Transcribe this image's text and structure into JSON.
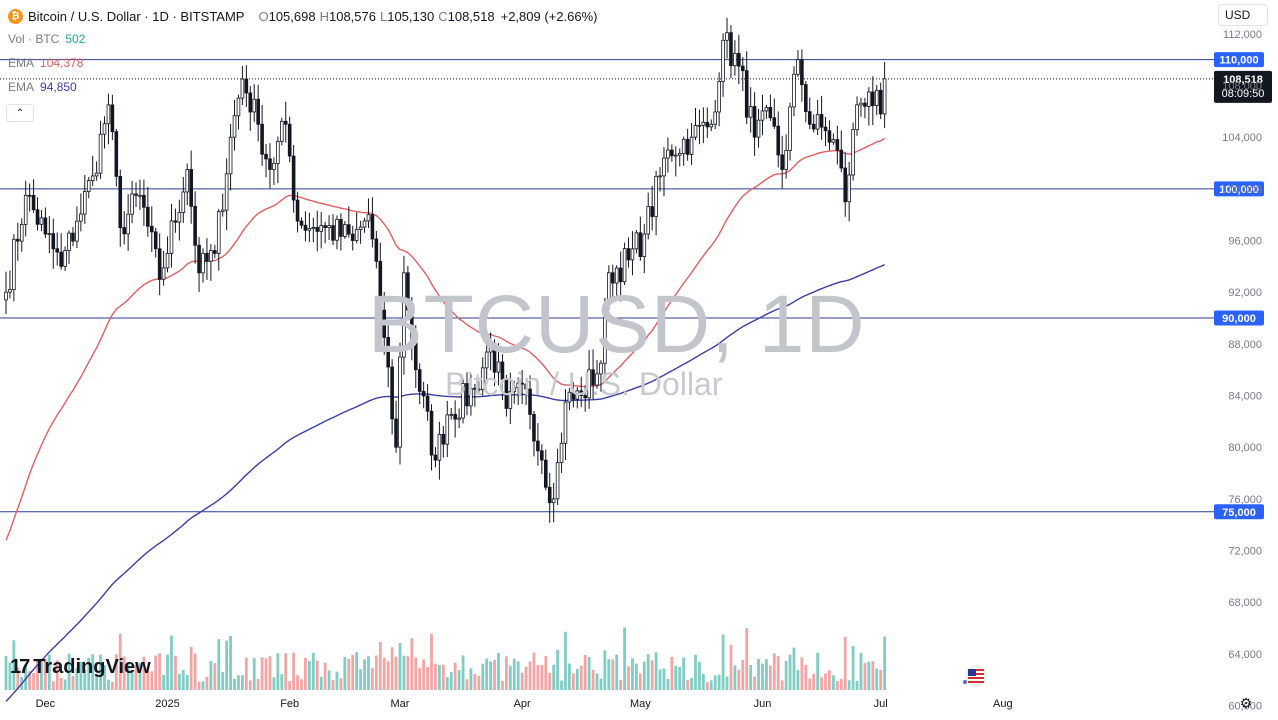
{
  "header": {
    "coin_icon": "bitcoin-icon",
    "coin_glyph": "₿",
    "symbol_title": "Bitcoin / U.S. Dollar · 1D · BITSTAMP",
    "ohlc": {
      "o_label": "O",
      "o_value": "105,698",
      "h_label": "H",
      "h_value": "108,576",
      "l_label": "L",
      "l_value": "105,130",
      "c_label": "C",
      "c_value": "108,518",
      "change": "+2,809 (+2.66%)"
    }
  },
  "indicators": [
    {
      "label": "Vol · BTC",
      "value": "502",
      "color": "#26a69a"
    },
    {
      "label": "EMA",
      "value": "104,378",
      "color": "#e15f5f"
    },
    {
      "label": "EMA",
      "value": "94,850",
      "color": "#3d3da8"
    }
  ],
  "currency_selector": {
    "value": "USD"
  },
  "watermark": {
    "symbol": "BTCUSD, 1D",
    "name": "Bitcoin / U.S. Dollar"
  },
  "logo": {
    "text": "TradingView",
    "mark": "17"
  },
  "colors": {
    "up": "#26a69a",
    "down": "#ef5350",
    "candle": "#131722",
    "ema_fast": "#e15f5f",
    "ema_slow": "#3d3da8",
    "level_line": "#2d3e8f",
    "level_badge": "#2962ff",
    "price_badge": "#131722"
  },
  "chart_data": {
    "type": "candlestick",
    "y_axis_ticks": [
      "112,000",
      "108,000",
      "104,000",
      "100,000",
      "96,000",
      "92,000",
      "88,000",
      "84,000",
      "80,000",
      "76,000",
      "72,000",
      "68,000",
      "64,000",
      "60,000"
    ],
    "ylim": [
      59500,
      114000
    ],
    "x_axis_ticks": [
      "Dec",
      "2025",
      "Feb",
      "Mar",
      "Apr",
      "May",
      "Jun",
      "Jul",
      "Aug"
    ],
    "horizontal_levels": [
      {
        "price": 110000,
        "label": "110,000"
      },
      {
        "price": 100000,
        "label": "100,000"
      },
      {
        "price": 90000,
        "label": "90,000"
      },
      {
        "price": 75000,
        "label": "75,000"
      }
    ],
    "last_price": {
      "price": 108518,
      "label": "108,518",
      "countdown": "08:09:50"
    },
    "close_waypoints": [
      [
        "2024-11-21",
        92000
      ],
      [
        "2024-11-26",
        99500
      ],
      [
        "2024-12-01",
        96500
      ],
      [
        "2024-12-05",
        94000
      ],
      [
        "2024-12-09",
        97500
      ],
      [
        "2024-12-13",
        101000
      ],
      [
        "2024-12-17",
        106500
      ],
      [
        "2024-12-20",
        97000
      ],
      [
        "2024-12-25",
        99500
      ],
      [
        "2024-12-30",
        93000
      ],
      [
        "2025-01-06",
        101500
      ],
      [
        "2025-01-09",
        93500
      ],
      [
        "2025-01-13",
        95000
      ],
      [
        "2025-01-17",
        104000
      ],
      [
        "2025-01-20",
        108500
      ],
      [
        "2025-01-24",
        105000
      ],
      [
        "2025-01-27",
        101500
      ],
      [
        "2025-01-31",
        105000
      ],
      [
        "2025-02-03",
        97500
      ],
      [
        "2025-02-10",
        97000
      ],
      [
        "2025-02-17",
        96000
      ],
      [
        "2025-02-21",
        98000
      ],
      [
        "2025-02-25",
        88500
      ],
      [
        "2025-02-28",
        80000
      ],
      [
        "2025-03-02",
        93500
      ],
      [
        "2025-03-05",
        86000
      ],
      [
        "2025-03-10",
        79000
      ],
      [
        "2025-03-13",
        82500
      ],
      [
        "2025-03-20",
        84500
      ],
      [
        "2025-03-24",
        88000
      ],
      [
        "2025-03-28",
        83000
      ],
      [
        "2025-04-02",
        84500
      ],
      [
        "2025-04-06",
        79000
      ],
      [
        "2025-04-09",
        76000
      ],
      [
        "2025-04-12",
        83500
      ],
      [
        "2025-04-16",
        84000
      ],
      [
        "2025-04-21",
        86500
      ],
      [
        "2025-04-23",
        93500
      ],
      [
        "2025-04-28",
        94500
      ],
      [
        "2025-05-02",
        96500
      ],
      [
        "2025-05-08",
        103000
      ],
      [
        "2025-05-14",
        104000
      ],
      [
        "2025-05-19",
        105000
      ],
      [
        "2025-05-22",
        111500
      ],
      [
        "2025-05-26",
        109500
      ],
      [
        "2025-05-30",
        104000
      ],
      [
        "2025-06-03",
        105500
      ],
      [
        "2025-06-06",
        101500
      ],
      [
        "2025-06-10",
        110000
      ],
      [
        "2025-06-13",
        105000
      ],
      [
        "2025-06-17",
        104500
      ],
      [
        "2025-06-20",
        103000
      ],
      [
        "2025-06-22",
        99000
      ],
      [
        "2025-06-25",
        106500
      ],
      [
        "2025-06-28",
        107500
      ],
      [
        "2025-07-01",
        105800
      ],
      [
        "2025-07-02",
        108518
      ]
    ],
    "ema_fast_end": 104378,
    "ema_slow_end": 94850
  }
}
